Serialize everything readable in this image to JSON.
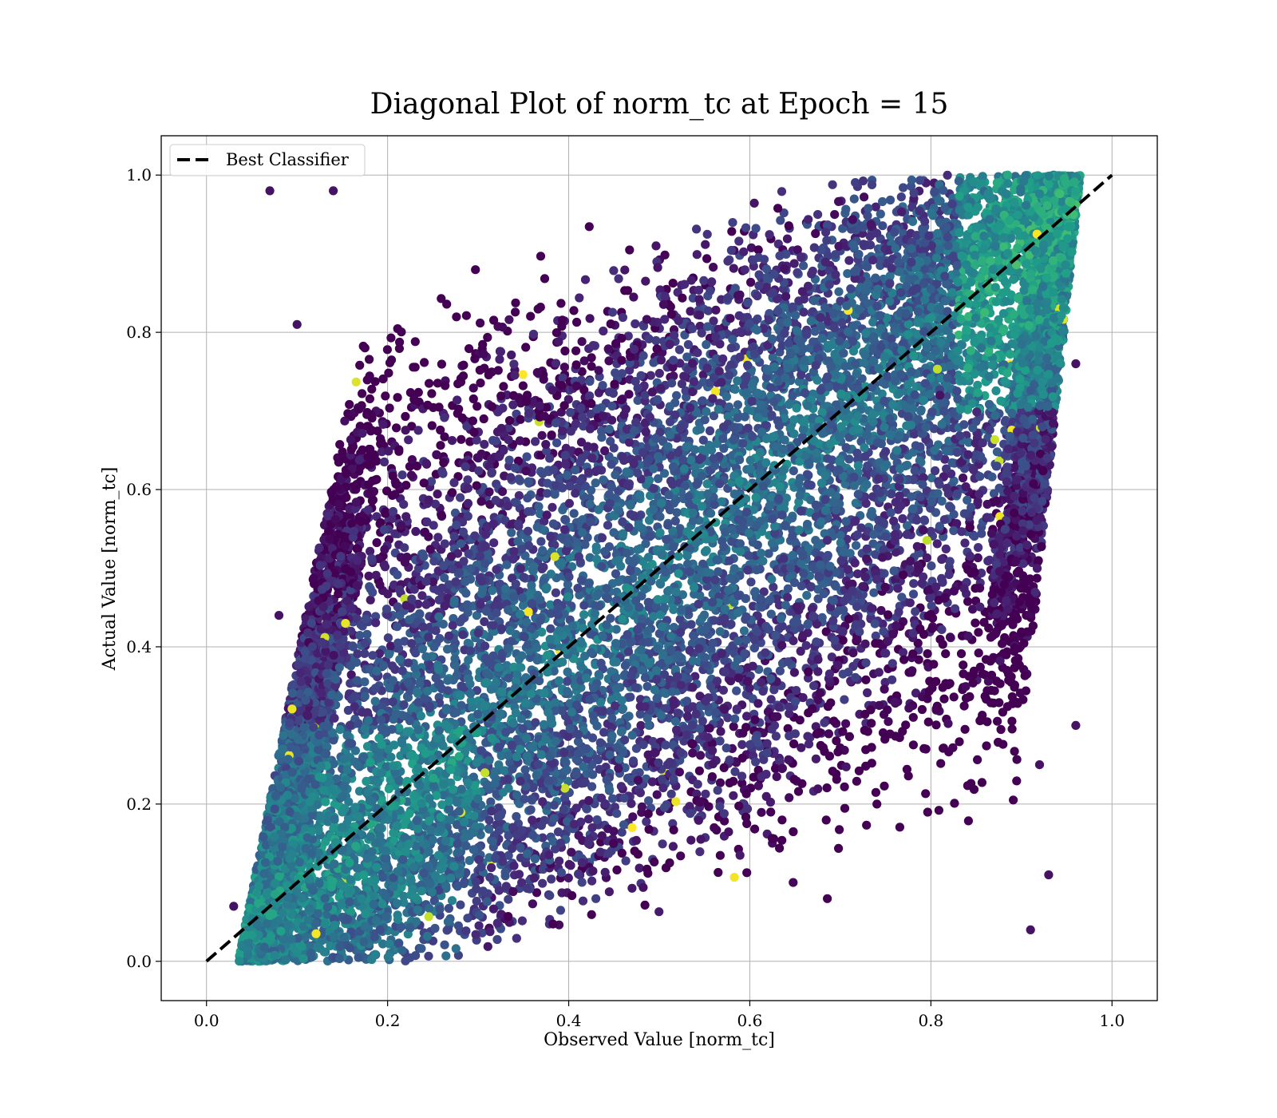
{
  "chart_data": {
    "type": "scatter",
    "title": "Diagonal Plot of norm_tc at Epoch = 15",
    "xlabel": "Observed Value [norm_tc]",
    "ylabel": "Actual Value [norm_tc]",
    "xlim": [
      -0.05,
      1.05
    ],
    "ylim": [
      -0.05,
      1.05
    ],
    "xticks": [
      "0.0",
      "0.2",
      "0.4",
      "0.6",
      "0.8",
      "1.0"
    ],
    "yticks": [
      "0.0",
      "0.2",
      "0.4",
      "0.6",
      "0.8",
      "1.0"
    ],
    "grid": true,
    "colormap": "viridis",
    "marker_color_range": [
      "#440154",
      "#fde725"
    ],
    "density": {
      "observed_range": [
        0.03,
        0.97
      ],
      "actual_range": [
        0.0,
        1.0
      ],
      "note": "tens of thousands of points; dense band around the diagonal, widening toward mid values"
    },
    "sample_points": [
      {
        "x": 0.07,
        "y": 0.98
      },
      {
        "x": 0.14,
        "y": 0.98
      },
      {
        "x": 0.1,
        "y": 0.81
      },
      {
        "x": 0.47,
        "y": 0.17
      },
      {
        "x": 0.96,
        "y": 0.3
      },
      {
        "x": 0.92,
        "y": 0.25
      },
      {
        "x": 0.93,
        "y": 0.11
      },
      {
        "x": 0.91,
        "y": 0.04
      },
      {
        "x": 0.08,
        "y": 0.44
      },
      {
        "x": 0.03,
        "y": 0.07
      },
      {
        "x": 0.96,
        "y": 0.76
      },
      {
        "x": 0.81,
        "y": 0.72
      }
    ],
    "reference_line": {
      "name": "Best Classifier",
      "style": "dashed",
      "color": "#000000",
      "x": [
        0.0,
        1.0
      ],
      "y": [
        0.0,
        1.0
      ]
    },
    "legend": {
      "placement": "upper-left",
      "entries": [
        "Best Classifier"
      ]
    }
  }
}
